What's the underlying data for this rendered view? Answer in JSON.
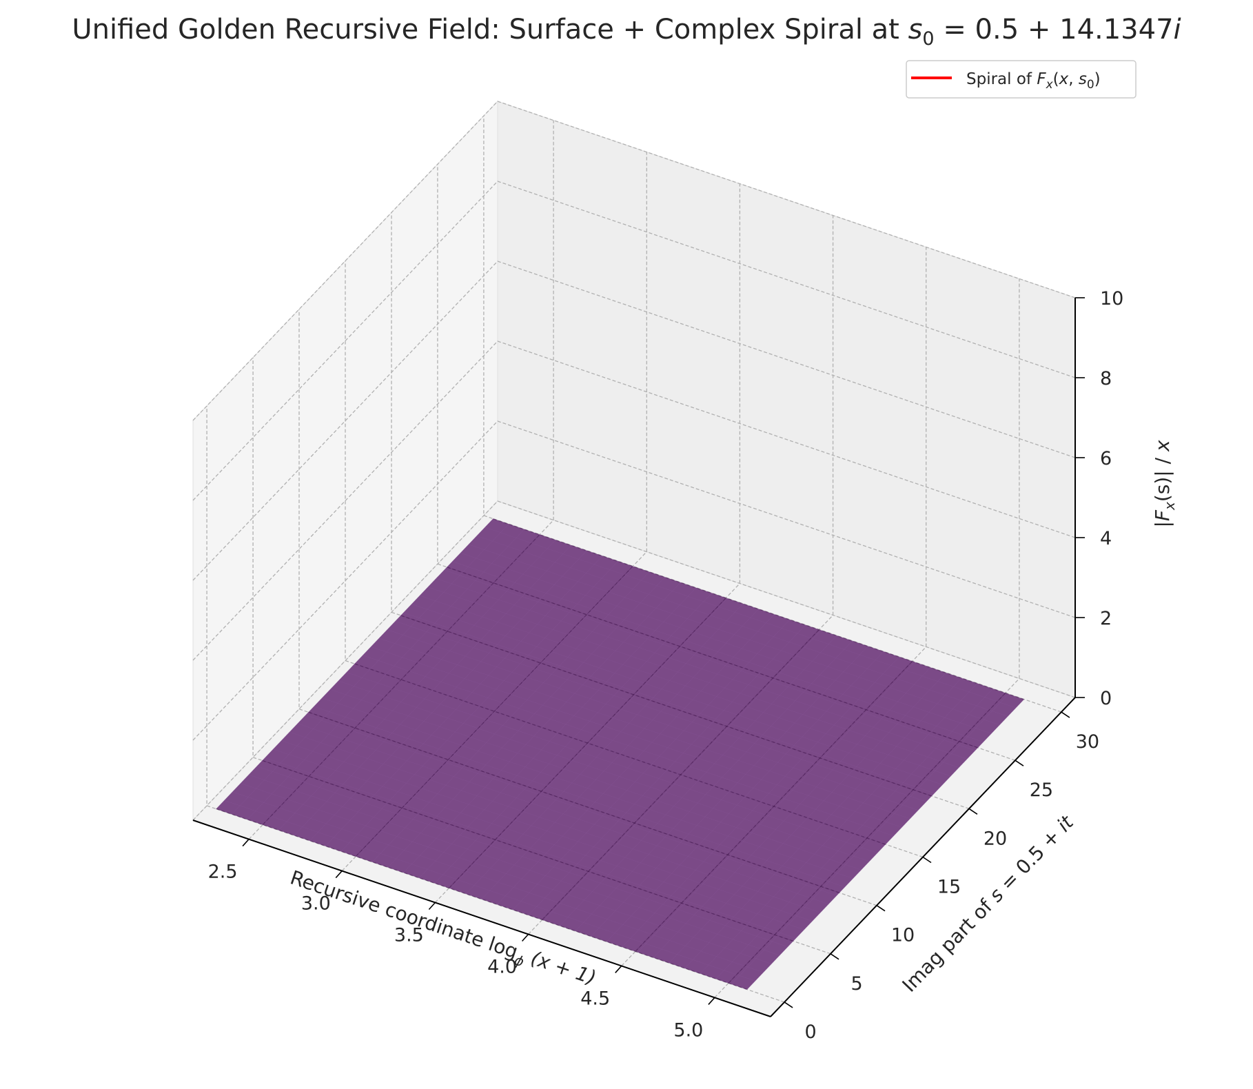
{
  "chart_data": {
    "type": "surface3d",
    "title": {
      "prefix": "Unified Golden Recursive Field: Surface + Complex Spiral at ",
      "math_var": "s",
      "math_sub": "0",
      "math_rest": " = 0.5 + 14.1347",
      "math_end": "i"
    },
    "xlabel": {
      "prefix": "Recursive coordinate log",
      "sub": "ϕ",
      "suffix": " (x + 1)"
    },
    "ylabel": {
      "prefix": "Imag part of ",
      "var": "s",
      "mid": " = 0.5 + ",
      "end": "it"
    },
    "zlabel": {
      "prefix": "|",
      "var": "F",
      "sub": "x",
      "mid": "(s)| / ",
      "end": "x"
    },
    "x_ticks": [
      "2.5",
      "3.0",
      "3.5",
      "4.0",
      "4.5",
      "5.0"
    ],
    "x_tick_values": [
      2.5,
      3.0,
      3.5,
      4.0,
      4.5,
      5.0
    ],
    "y_ticks": [
      "0",
      "5",
      "10",
      "15",
      "20",
      "25",
      "30"
    ],
    "y_tick_values": [
      0,
      5,
      10,
      15,
      20,
      25,
      30
    ],
    "z_ticks": [
      "0",
      "2",
      "4",
      "6",
      "8",
      "10"
    ],
    "z_tick_values": [
      0,
      2,
      4,
      6,
      8,
      10
    ],
    "xlim": [
      2.2,
      5.3
    ],
    "ylim": [
      -1.5,
      31.5
    ],
    "zlim": [
      0,
      10
    ],
    "surface": {
      "x_range": [
        2.25,
        5.1
      ],
      "y_range": [
        0,
        30
      ],
      "z_value": 0,
      "color": "#5c1f6b",
      "opacity": 0.8
    },
    "legend": {
      "placement": "upper right",
      "entries": [
        {
          "prefix": "Spiral of ",
          "var": "F",
          "sub": "x",
          "arg_open": "(",
          "arg_x": "x",
          "arg_sep": ", ",
          "arg_s": "s",
          "arg_sub": "0",
          "arg_close": ")",
          "color": "#ff0000"
        }
      ]
    },
    "grid": true
  }
}
